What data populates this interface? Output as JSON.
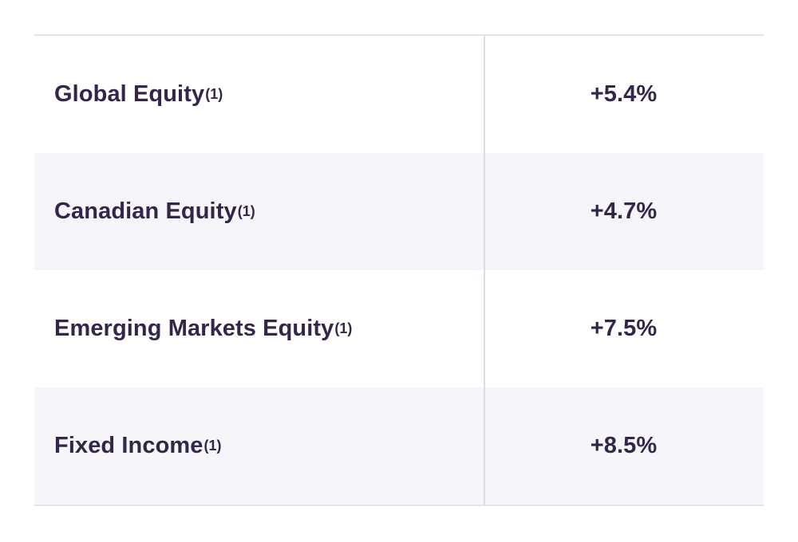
{
  "table": {
    "rows": [
      {
        "label": "Global Equity",
        "footnote": "(1)",
        "value": "+5.4%"
      },
      {
        "label": "Canadian Equity",
        "footnote": "(1)",
        "value": "+4.7%"
      },
      {
        "label": "Emerging Markets Equity",
        "footnote": "(1)",
        "value": "+7.5%"
      },
      {
        "label": "Fixed Income",
        "footnote": "(1)",
        "value": "+8.5%"
      }
    ]
  },
  "colors": {
    "text": "#33264a",
    "row_shade": "#f5f5fa",
    "divider": "#dedbe9"
  }
}
